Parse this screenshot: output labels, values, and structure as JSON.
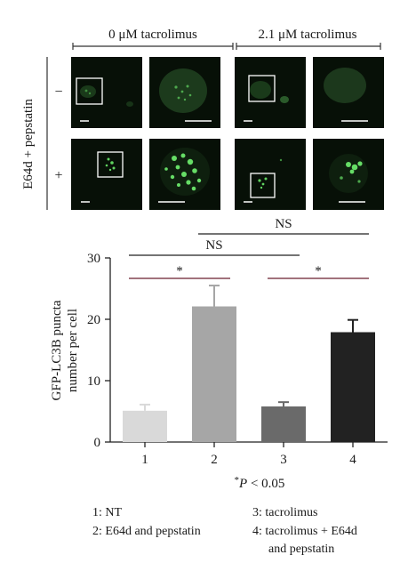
{
  "panel_a": {
    "conditions": [
      "0 μM tacrolimus",
      "2.1 μM tacrolimus"
    ],
    "row_factor": "E64d + pepstatin",
    "row_levels": [
      "−",
      "+"
    ]
  },
  "chart_data": {
    "type": "bar",
    "categories": [
      "1",
      "2",
      "3",
      "4"
    ],
    "values": [
      5.1,
      22.1,
      5.8,
      17.9
    ],
    "errors": [
      1.0,
      3.4,
      0.7,
      2.0
    ],
    "bar_colors": [
      "#d9d9d9",
      "#a6a6a6",
      "#6a6a6a",
      "#222222"
    ],
    "xlabel": "",
    "ylabel": "GFP-LC3B puncta number per cell",
    "ylabel_lines": [
      "GFP-LC3B puncta",
      "number per cell"
    ],
    "ylim": [
      0,
      30
    ],
    "yticks": [
      0,
      10,
      20,
      30
    ],
    "grid": false,
    "significance": [
      {
        "from": "1",
        "to": "2",
        "label": "*"
      },
      {
        "from": "1",
        "to": "3",
        "label": "NS"
      },
      {
        "from": "2",
        "to": "4",
        "label": "NS"
      },
      {
        "from": "3",
        "to": "4",
        "label": "*"
      }
    ],
    "footnote": {
      "star": "*",
      "italic": "P",
      "rest": " < 0.05"
    }
  },
  "legend": [
    "1: NT",
    "2: E64d and pepstatin",
    "3: tacrolimus",
    "4: tacrolimus + E64d",
    "and pepstatin"
  ]
}
